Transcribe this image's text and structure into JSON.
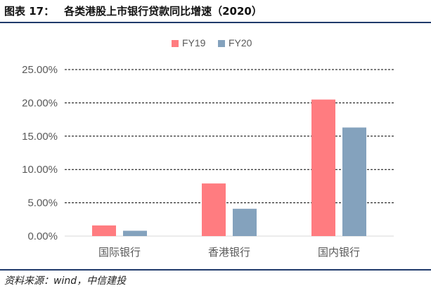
{
  "figure": {
    "label": "图表 17：",
    "title": "各类港股上市银行贷款同比增速（2020）",
    "source": "资料来源：wind，中信建投"
  },
  "colors": {
    "FY19": "#ff7c80",
    "FY20": "#84a2bd",
    "rule": "#1f3a6b",
    "grid": "#000000",
    "axis": "#d9d9d9",
    "text": "#595959"
  },
  "chart_data": {
    "type": "bar",
    "title": "",
    "xlabel": "",
    "ylabel": "",
    "categories": [
      "国际银行",
      "香港银行",
      "国内银行"
    ],
    "series": [
      {
        "name": "FY19",
        "values": [
          1.6,
          7.9,
          20.5
        ]
      },
      {
        "name": "FY20",
        "values": [
          0.8,
          4.1,
          16.3
        ]
      }
    ],
    "ylim": [
      0,
      25
    ],
    "yticks": [
      "0.00%",
      "5.00%",
      "10.00%",
      "15.00%",
      "20.00%",
      "25.00%"
    ],
    "grid": "horizontal dashed",
    "legend": "top-center"
  }
}
